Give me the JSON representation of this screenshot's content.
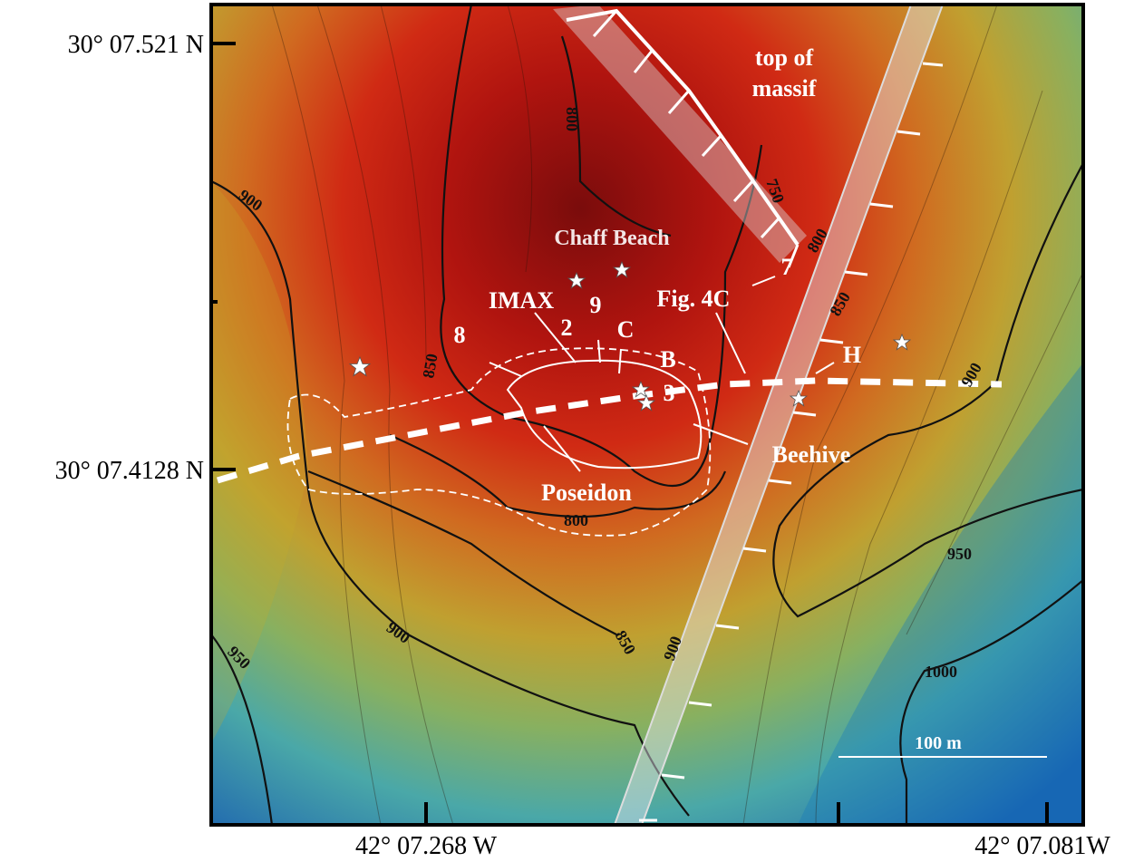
{
  "axes": {
    "latitude_labels": [
      "30° 07.521 N",
      "30° 07.4128 N"
    ],
    "longitude_labels": [
      "42° 07.268 W",
      "42° 07.081W"
    ]
  },
  "annotations": [
    "top of",
    "massif",
    "Chaff Beach",
    "IMAX",
    "9",
    "2",
    "C",
    "B",
    "3",
    "8",
    "Fig. 4C",
    "7",
    "H",
    "Beehive",
    "Poseidon",
    "100 m"
  ],
  "contour_labels": [
    "800",
    "750",
    "800",
    "850",
    "900",
    "850",
    "900",
    "950",
    "1000",
    "800",
    "850",
    "900",
    "900",
    "950"
  ]
}
